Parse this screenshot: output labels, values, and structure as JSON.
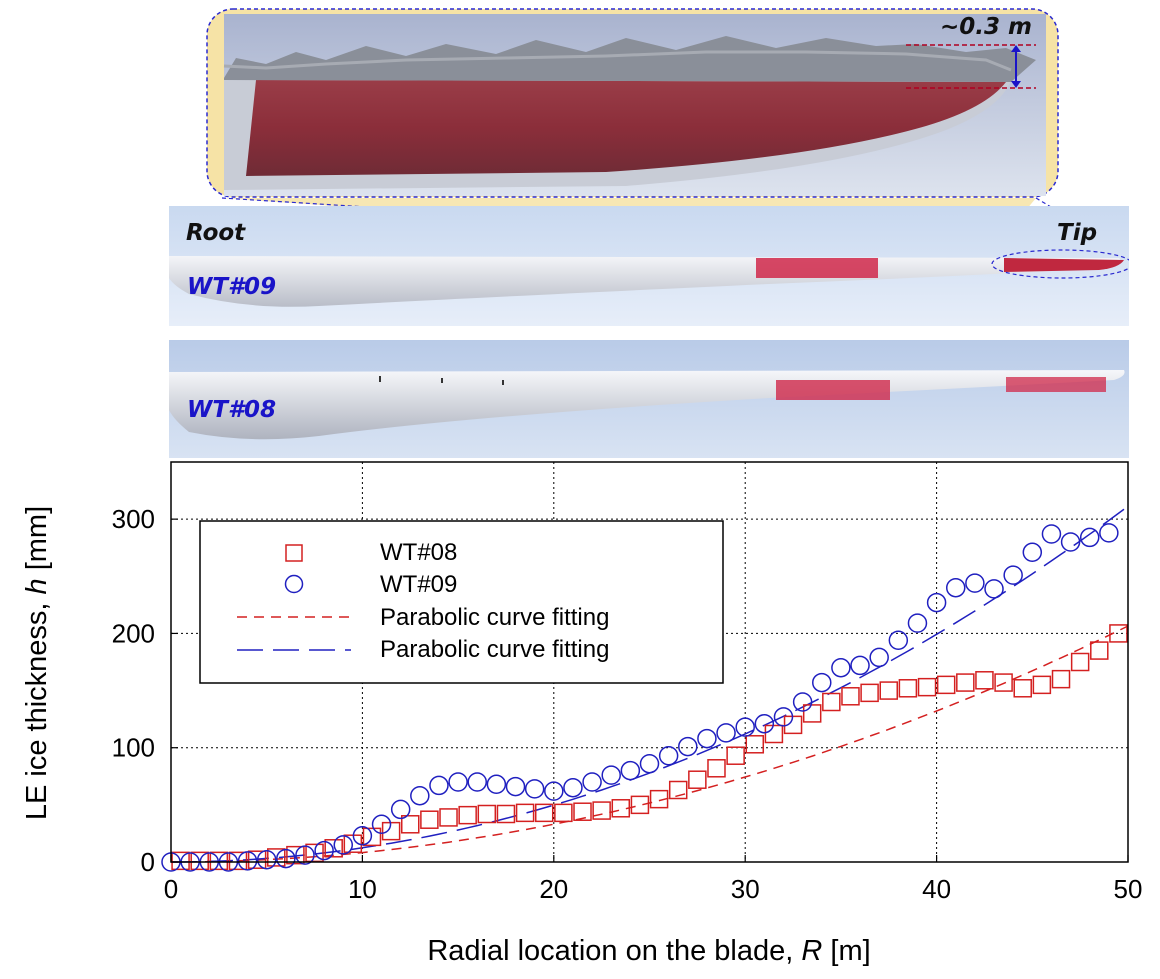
{
  "photos": {
    "zoom_annotation": "~0.3 m",
    "root_label": "Root",
    "tip_label": "Tip",
    "wt09_label": "WT#09",
    "wt08_label": "WT#08",
    "colors": {
      "ice_red": "#c0283f",
      "wt_label_blue": "#1a14c8",
      "zoom_border": "#2a2ad0",
      "zoom_fill": "#f6e3a6"
    }
  },
  "chart_data": {
    "type": "scatter",
    "xlabel_prefix": "Radial location on the blade, ",
    "xlabel_var": "R",
    "xlabel_unit": " [m]",
    "ylabel_prefix": "LE ice thickness, ",
    "ylabel_var": "h",
    "ylabel_unit": " [mm]",
    "xlim": [
      0,
      50
    ],
    "ylim": [
      0,
      350
    ],
    "x_ticks": [
      0,
      10,
      20,
      30,
      40,
      50
    ],
    "y_ticks": [
      0,
      100,
      200,
      300
    ],
    "grid": "dotted",
    "legend_position": "upper-left",
    "series": [
      {
        "name": "WT#08",
        "marker": "square",
        "color": "#d42020",
        "x": [
          0.5,
          1.5,
          2.5,
          3.5,
          4.5,
          5.5,
          6.5,
          7.5,
          8.5,
          9.5,
          10.5,
          11.5,
          12.5,
          13.5,
          14.5,
          15.5,
          16.5,
          17.5,
          18.5,
          19.5,
          20.5,
          21.5,
          22.5,
          23.5,
          24.5,
          25.5,
          26.5,
          27.5,
          28.5,
          29.5,
          30.5,
          31.5,
          32.5,
          33.5,
          34.5,
          35.5,
          36.5,
          37.5,
          38.5,
          39.5,
          40.5,
          41.5,
          42.5,
          43.5,
          44.5,
          45.5,
          46.5,
          47.5,
          48.5,
          49.5
        ],
        "y": [
          1,
          1,
          1,
          1,
          2,
          4,
          6,
          8,
          12,
          16,
          22,
          27,
          33,
          37,
          39,
          41,
          42,
          42,
          43,
          43,
          43,
          44,
          45,
          47,
          50,
          55,
          63,
          72,
          82,
          93,
          103,
          112,
          120,
          130,
          140,
          145,
          148,
          150,
          152,
          153,
          155,
          157,
          159,
          157,
          152,
          155,
          160,
          175,
          185,
          200
        ]
      },
      {
        "name": "WT#09",
        "marker": "circle",
        "color": "#2020c0",
        "x": [
          0,
          1,
          2,
          3,
          4,
          5,
          6,
          7,
          8,
          9,
          10,
          11,
          12,
          13,
          14,
          15,
          16,
          17,
          18,
          19,
          20,
          21,
          22,
          23,
          24,
          25,
          26,
          27,
          28,
          29,
          30,
          31,
          32,
          33,
          34,
          35,
          36,
          37,
          38,
          39,
          40,
          41,
          42,
          43,
          44,
          45,
          46,
          47,
          48,
          49
        ],
        "y": [
          0,
          0,
          0,
          0,
          1,
          2,
          3,
          6,
          10,
          15,
          23,
          33,
          46,
          58,
          67,
          70,
          70,
          68,
          66,
          64,
          62,
          65,
          70,
          76,
          80,
          86,
          93,
          101,
          108,
          113,
          118,
          121,
          127,
          140,
          157,
          170,
          172,
          179,
          194,
          209,
          227,
          240,
          244,
          239,
          251,
          271,
          287,
          280,
          284,
          288
        ]
      }
    ],
    "fits": [
      {
        "name": "Parabolic curve fitting",
        "style": "short-dash",
        "color": "#d42020",
        "coef": [
          0.0826,
          0.0,
          0.0
        ],
        "x_range": [
          0,
          50
        ]
      },
      {
        "name": "Parabolic curve fitting",
        "style": "long-dash",
        "color": "#2020c0",
        "coef": [
          0.1245,
          0.0,
          0.0
        ],
        "x_range": [
          0,
          50
        ]
      }
    ]
  }
}
